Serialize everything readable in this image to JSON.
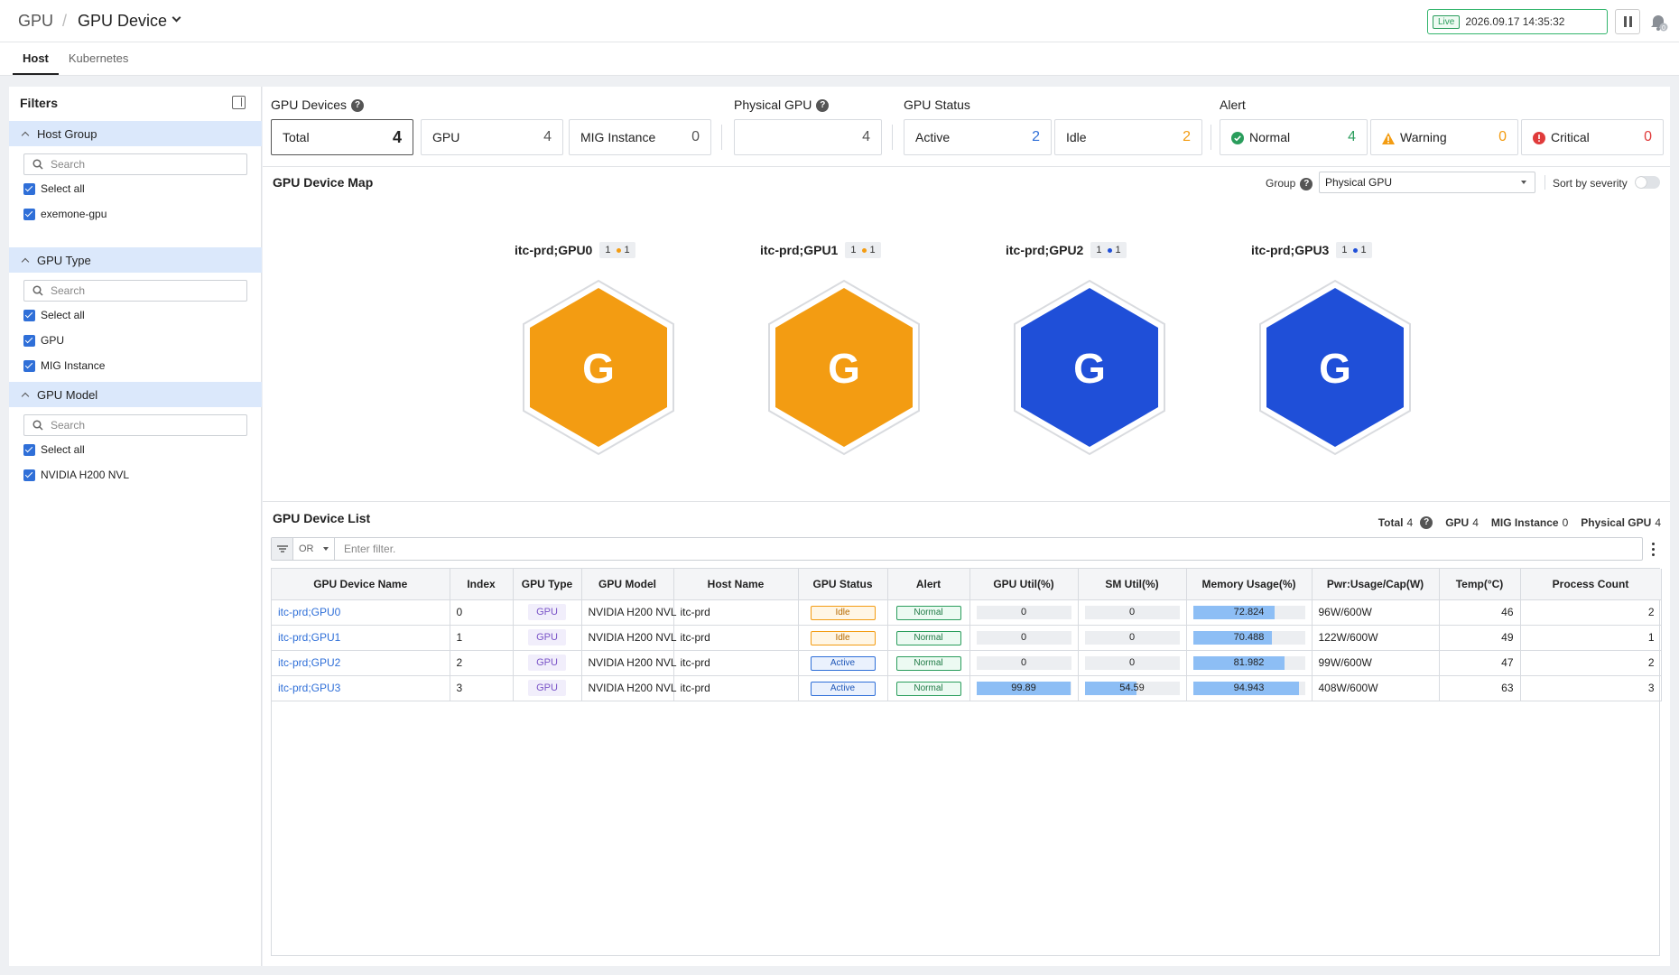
{
  "header": {
    "breadcrumb_root": "GPU",
    "breadcrumb_sep": "/",
    "title": "GPU Device",
    "live_label": "Live",
    "datetime": "2026.09.17 14:35:32",
    "notification_count": "0"
  },
  "tabs": [
    {
      "label": "Host",
      "active": true
    },
    {
      "label": "Kubernetes",
      "active": false
    }
  ],
  "filters": {
    "title": "Filters",
    "search_placeholder": "Search",
    "groups": [
      {
        "title": "Host Group",
        "items": [
          "Select all",
          "exemone-gpu"
        ]
      },
      {
        "title": "GPU Type",
        "items": [
          "Select all",
          "GPU",
          "MIG Instance"
        ]
      },
      {
        "title": "GPU Model",
        "items": [
          "Select all",
          "NVIDIA H200 NVL"
        ]
      }
    ]
  },
  "summary": {
    "gpu_devices_label": "GPU Devices",
    "physical_gpu_label": "Physical GPU",
    "gpu_status_label": "GPU Status",
    "alert_label": "Alert",
    "total_label": "Total",
    "total_value": "4",
    "gpu_label": "GPU",
    "gpu_value": "4",
    "mig_label": "MIG Instance",
    "mig_value": "0",
    "physical_value": "4",
    "active_label": "Active",
    "active_value": "2",
    "idle_label": "Idle",
    "idle_value": "2",
    "normal_label": "Normal",
    "normal_value": "4",
    "warning_label": "Warning",
    "warning_value": "0",
    "critical_label": "Critical",
    "critical_value": "0"
  },
  "colors": {
    "idle": "#f39c12",
    "active": "#1f4fd8",
    "normal": "#2a9d5c",
    "warning": "#f39c12",
    "critical": "#e03b3b",
    "link": "#2f6fd8"
  },
  "device_map": {
    "title": "GPU Device Map",
    "group_label": "Group",
    "group_value": "Physical GPU",
    "sort_label": "Sort by severity",
    "hex_letter": "G",
    "devices": [
      {
        "name": "itc-prd;GPU0",
        "count": "1",
        "dot_count": "1",
        "status": "idle"
      },
      {
        "name": "itc-prd;GPU1",
        "count": "1",
        "dot_count": "1",
        "status": "idle"
      },
      {
        "name": "itc-prd;GPU2",
        "count": "1",
        "dot_count": "1",
        "status": "active"
      },
      {
        "name": "itc-prd;GPU3",
        "count": "1",
        "dot_count": "1",
        "status": "active"
      }
    ]
  },
  "device_list": {
    "title": "GPU Device List",
    "total_label": "Total",
    "total_value": "4",
    "gpu_label": "GPU",
    "gpu_value": "4",
    "mig_label": "MIG Instance",
    "mig_value": "0",
    "physical_label": "Physical GPU",
    "physical_value": "4",
    "or_label": "OR",
    "filter_placeholder": "Enter filter.",
    "columns": [
      "GPU Device Name",
      "Index",
      "GPU Type",
      "GPU Model",
      "Host Name",
      "GPU Status",
      "Alert",
      "GPU Util(%)",
      "SM Util(%)",
      "Memory Usage(%)",
      "Pwr:Usage/Cap(W)",
      "Temp(°C)",
      "Process Count"
    ],
    "rows": [
      {
        "name": "itc-prd;GPU0",
        "index": "0",
        "type": "GPU",
        "model": "NVIDIA H200 NVL",
        "host": "itc-prd",
        "status": "Idle",
        "alert": "Normal",
        "gpu_util": "0",
        "gpu_util_pct": 0,
        "sm_util": "0",
        "sm_util_pct": 0,
        "mem": "72.824",
        "mem_pct": 72.824,
        "pwr": "96W/600W",
        "temp": "46",
        "proc": "2"
      },
      {
        "name": "itc-prd;GPU1",
        "index": "1",
        "type": "GPU",
        "model": "NVIDIA H200 NVL",
        "host": "itc-prd",
        "status": "Idle",
        "alert": "Normal",
        "gpu_util": "0",
        "gpu_util_pct": 0,
        "sm_util": "0",
        "sm_util_pct": 0,
        "mem": "70.488",
        "mem_pct": 70.488,
        "pwr": "122W/600W",
        "temp": "49",
        "proc": "1"
      },
      {
        "name": "itc-prd;GPU2",
        "index": "2",
        "type": "GPU",
        "model": "NVIDIA H200 NVL",
        "host": "itc-prd",
        "status": "Active",
        "alert": "Normal",
        "gpu_util": "0",
        "gpu_util_pct": 0,
        "sm_util": "0",
        "sm_util_pct": 0,
        "mem": "81.982",
        "mem_pct": 81.982,
        "pwr": "99W/600W",
        "temp": "47",
        "proc": "2"
      },
      {
        "name": "itc-prd;GPU3",
        "index": "3",
        "type": "GPU",
        "model": "NVIDIA H200 NVL",
        "host": "itc-prd",
        "status": "Active",
        "alert": "Normal",
        "gpu_util": "99.89",
        "gpu_util_pct": 99.89,
        "sm_util": "54.59",
        "sm_util_pct": 54.59,
        "mem": "94.943",
        "mem_pct": 94.943,
        "pwr": "408W/600W",
        "temp": "63",
        "proc": "3"
      }
    ]
  }
}
